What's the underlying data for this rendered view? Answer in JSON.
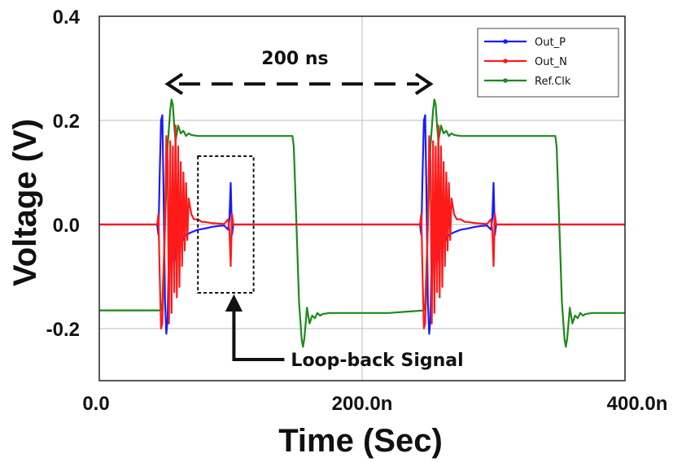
{
  "chart_data": {
    "type": "line",
    "xlabel": "Time (Sec)",
    "ylabel": "Voltage (V)",
    "xlim": [
      0,
      400
    ],
    "ylim": [
      -0.3,
      0.4
    ],
    "x_unit": "ns",
    "x_ticks": [
      0,
      200,
      400
    ],
    "x_tick_labels": [
      "0.0",
      "200.0n",
      "400.0n"
    ],
    "y_ticks": [
      -0.2,
      0.0,
      0.2,
      0.4
    ],
    "y_tick_labels": [
      "-0.2",
      "0.0",
      "0.2",
      "0.4"
    ],
    "grid": true,
    "legend_position": "top-right",
    "series": [
      {
        "name": "Out_P",
        "color": "#1a1aff",
        "x": [
          0,
          44,
          45,
          46,
          47,
          48,
          49,
          50,
          51,
          52,
          53,
          54,
          55,
          56,
          57,
          58,
          60,
          62,
          64,
          66,
          70,
          75,
          80,
          85,
          90,
          95,
          98,
          99,
          100,
          101,
          102,
          105,
          120,
          150,
          200,
          244,
          245,
          246,
          247,
          248,
          249,
          250,
          251,
          252,
          253,
          254,
          255,
          256,
          257,
          258,
          260,
          262,
          264,
          266,
          270,
          275,
          280,
          285,
          290,
          295,
          298,
          299,
          300,
          301,
          302,
          305,
          320,
          350,
          400
        ],
        "y": [
          0.0,
          0.0,
          -0.02,
          0.1,
          0.2,
          0.21,
          0.05,
          -0.15,
          -0.21,
          -0.18,
          -0.05,
          0.05,
          0.03,
          -0.05,
          -0.08,
          -0.05,
          -0.02,
          0.0,
          -0.03,
          -0.02,
          -0.015,
          -0.01,
          -0.008,
          -0.005,
          -0.003,
          -0.002,
          -0.01,
          0.01,
          0.08,
          -0.02,
          0.0,
          0.0,
          0.0,
          0.0,
          0.0,
          0.0,
          -0.02,
          0.1,
          0.2,
          0.21,
          0.05,
          -0.15,
          -0.21,
          -0.18,
          -0.05,
          0.05,
          0.03,
          -0.05,
          -0.08,
          -0.05,
          -0.02,
          0.0,
          -0.03,
          -0.02,
          -0.015,
          -0.01,
          -0.008,
          -0.005,
          -0.003,
          -0.002,
          -0.01,
          0.01,
          0.08,
          -0.02,
          0.0,
          0.0,
          0.0,
          0.0,
          0.0
        ]
      },
      {
        "name": "Out_N",
        "color": "#ff1a1a",
        "x": [
          0,
          44,
          45,
          46,
          47,
          48,
          50,
          51,
          52,
          53,
          54,
          55,
          56,
          57,
          58,
          59,
          60,
          61,
          62,
          63,
          64,
          65,
          66,
          67,
          68,
          70,
          72,
          75,
          78,
          80,
          85,
          90,
          95,
          98,
          99,
          100,
          101,
          102,
          105,
          120,
          150,
          200,
          244,
          245,
          246,
          247,
          248,
          250,
          251,
          252,
          253,
          254,
          255,
          256,
          257,
          258,
          259,
          260,
          261,
          262,
          263,
          264,
          265,
          266,
          267,
          268,
          270,
          272,
          275,
          278,
          280,
          285,
          290,
          295,
          298,
          299,
          300,
          301,
          302,
          305,
          320,
          350,
          400
        ],
        "y": [
          0.0,
          0.0,
          0.02,
          -0.1,
          -0.2,
          -0.19,
          0.0,
          0.17,
          0.12,
          -0.19,
          0.16,
          -0.17,
          0.15,
          -0.13,
          0.19,
          -0.14,
          0.15,
          -0.12,
          0.12,
          -0.08,
          0.1,
          -0.05,
          0.08,
          -0.03,
          0.05,
          0.02,
          0.01,
          0.01,
          0.005,
          0.005,
          0.003,
          0.002,
          0.001,
          0.01,
          -0.01,
          -0.08,
          0.02,
          0.0,
          0.0,
          0.0,
          0.0,
          0.0,
          0.0,
          0.02,
          -0.1,
          -0.2,
          -0.19,
          0.0,
          0.17,
          0.12,
          -0.19,
          0.16,
          -0.17,
          0.15,
          -0.13,
          0.19,
          -0.14,
          0.15,
          -0.12,
          0.12,
          -0.08,
          0.1,
          -0.05,
          0.08,
          -0.03,
          0.05,
          0.02,
          0.01,
          0.01,
          0.005,
          0.005,
          0.003,
          0.002,
          0.001,
          0.01,
          -0.01,
          -0.08,
          0.02,
          0.0,
          0.0,
          0.0,
          0.0,
          0.0
        ]
      },
      {
        "name": "Ref.Clk",
        "color": "#1a8a1a",
        "x": [
          0,
          47,
          48,
          50,
          52,
          54,
          55,
          56,
          57,
          58,
          60,
          62,
          64,
          66,
          68,
          70,
          75,
          80,
          100,
          120,
          147,
          148,
          150,
          152,
          154,
          155,
          156,
          157,
          158,
          160,
          162,
          164,
          166,
          168,
          170,
          175,
          180,
          200,
          220,
          247,
          248,
          250,
          252,
          254,
          255,
          256,
          257,
          258,
          260,
          262,
          264,
          266,
          268,
          270,
          275,
          280,
          300,
          320,
          347,
          348,
          350,
          352,
          354,
          355,
          356,
          357,
          358,
          360,
          362,
          364,
          366,
          368,
          370,
          375,
          380,
          400
        ],
        "y": [
          -0.165,
          -0.165,
          -0.15,
          0.0,
          0.15,
          0.22,
          0.24,
          0.23,
          0.19,
          0.16,
          0.19,
          0.175,
          0.18,
          0.17,
          0.175,
          0.172,
          0.17,
          0.17,
          0.17,
          0.17,
          0.17,
          0.15,
          0.0,
          -0.15,
          -0.22,
          -0.235,
          -0.22,
          -0.19,
          -0.16,
          -0.19,
          -0.175,
          -0.18,
          -0.17,
          -0.175,
          -0.172,
          -0.17,
          -0.17,
          -0.17,
          -0.17,
          -0.165,
          -0.15,
          0.0,
          0.15,
          0.22,
          0.24,
          0.23,
          0.19,
          0.16,
          0.19,
          0.175,
          0.18,
          0.17,
          0.175,
          0.172,
          0.17,
          0.17,
          0.17,
          0.17,
          0.17,
          0.15,
          0.0,
          -0.15,
          -0.22,
          -0.235,
          -0.22,
          -0.19,
          -0.16,
          -0.19,
          -0.175,
          -0.18,
          -0.17,
          -0.175,
          -0.172,
          -0.17,
          -0.17,
          -0.17
        ]
      }
    ],
    "annotations": [
      {
        "type": "double_arrow",
        "label": "200 ns",
        "x_from": 52,
        "x_to": 252,
        "y": 0.27
      },
      {
        "type": "box_arrow",
        "label": "Loop-back Signal",
        "x_box": [
          80,
          110
        ],
        "y_box": [
          -0.1,
          0.1
        ]
      }
    ]
  }
}
